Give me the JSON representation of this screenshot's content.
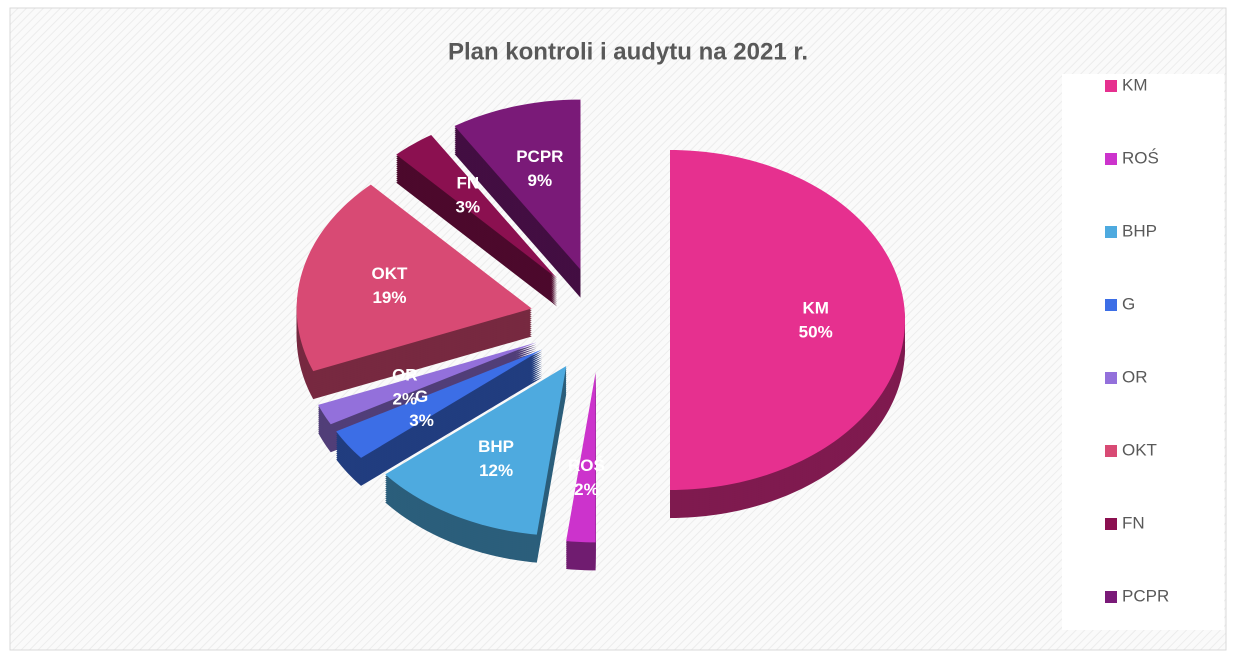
{
  "chart_data": {
    "type": "pie",
    "title": "Plan kontroli i audytu  na 2021 r.",
    "categories": [
      "KM",
      "ROŚ",
      "BHP",
      "G",
      "OR",
      "OKT",
      "FN",
      "PCPR"
    ],
    "values": [
      50,
      2,
      12,
      3,
      2,
      19,
      3,
      9
    ],
    "value_labels": [
      "50%",
      "2%",
      "12%",
      "3%",
      "2%",
      "19%",
      "3%",
      "9%"
    ],
    "colors": [
      "#e6308f",
      "#cc33cc",
      "#4eaadf",
      "#3c6ee6",
      "#9370db",
      "#d84a74",
      "#8b1050",
      "#7a1a78"
    ],
    "legend": "right"
  }
}
